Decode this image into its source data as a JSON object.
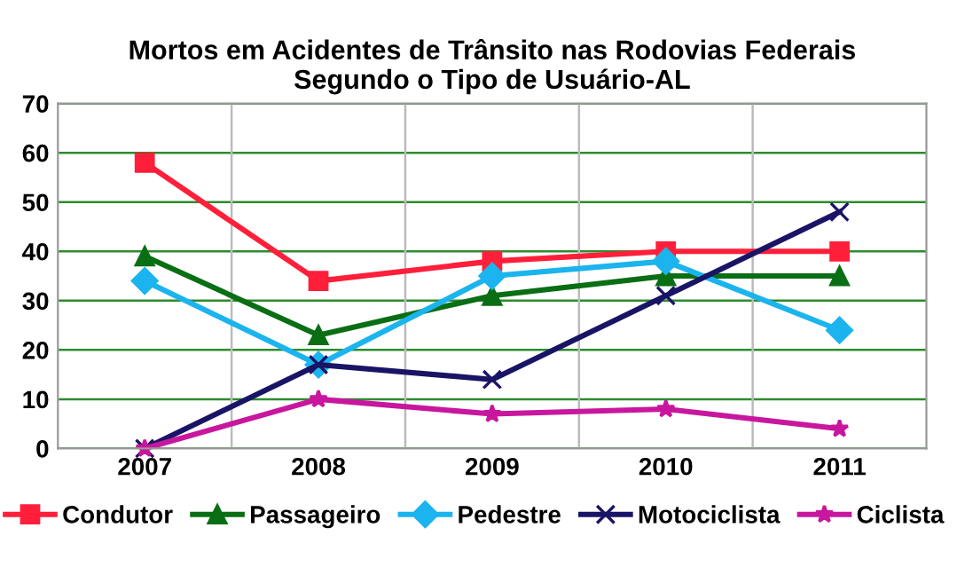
{
  "chart_data": {
    "type": "line",
    "title": "Mortos em Acidentes de Trânsito nas Rodovias Federais\nSegundo o Tipo de Usuário-AL",
    "categories": [
      "2007",
      "2008",
      "2009",
      "2010",
      "2011"
    ],
    "series": [
      {
        "name": "Condutor",
        "color": "#ff1f3a",
        "marker": "square",
        "values": [
          58,
          34,
          38,
          40,
          40
        ]
      },
      {
        "name": "Passageiro",
        "color": "#0a6e14",
        "marker": "triangle",
        "values": [
          39,
          23,
          31,
          35,
          35
        ]
      },
      {
        "name": "Pedestre",
        "color": "#1bb4ee",
        "marker": "diamond",
        "values": [
          34,
          17,
          35,
          38,
          24
        ]
      },
      {
        "name": "Motociclista",
        "color": "#1a1466",
        "marker": "cross",
        "values": [
          0,
          17,
          14,
          31,
          48
        ]
      },
      {
        "name": "Ciclista",
        "color": "#c8179e",
        "marker": "star",
        "values": [
          0,
          10,
          7,
          8,
          4
        ]
      }
    ],
    "ylim": [
      0,
      70
    ],
    "yticks": [
      0,
      10,
      20,
      30,
      40,
      50,
      60,
      70
    ],
    "grid": true,
    "legend": "bottom",
    "line_style": "solid"
  }
}
